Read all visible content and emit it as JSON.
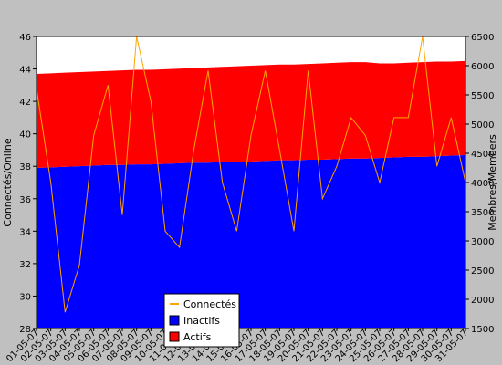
{
  "chart_data": {
    "type": "stacked-area-line",
    "y_label": "Connectés/Online",
    "y2_label": "Membres/Members",
    "categories": [
      "01-05-07",
      "02-05-07",
      "03-05-07",
      "04-05-07",
      "05-05-07",
      "06-05-07",
      "07-05-07",
      "08-05-07",
      "09-05-07",
      "10-05-07",
      "11-05-07",
      "12-05-07",
      "13-05-07",
      "14-05-07",
      "15-05-07",
      "16-05-07",
      "17-05-07",
      "18-05-07",
      "19-05-07",
      "20-05-07",
      "21-05-07",
      "22-05-07",
      "23-05-07",
      "24-05-07",
      "25-05-07",
      "26-05-07",
      "27-05-07",
      "28-05-07",
      "29-05-07",
      "30-05-07",
      "31-05-07"
    ],
    "series": [
      {
        "name": "Connectés",
        "color": "#ffa500",
        "kind": "line",
        "axis": "y",
        "values": [
          42.8,
          37,
          29,
          31.9,
          39.9,
          43,
          35,
          46,
          42,
          34,
          33,
          39,
          43.9,
          37,
          34,
          39.9,
          43.9,
          39,
          34,
          43.9,
          36,
          38,
          41,
          39.9,
          37,
          41,
          41,
          46,
          38,
          41,
          37
        ]
      },
      {
        "name": "Inactifs",
        "color": "#0000ff",
        "kind": "area",
        "axis": "y2",
        "values": [
          4250,
          4260,
          4270,
          4280,
          4290,
          4300,
          4300,
          4310,
          4310,
          4320,
          4330,
          4340,
          4340,
          4350,
          4360,
          4360,
          4370,
          4380,
          4380,
          4390,
          4390,
          4400,
          4410,
          4410,
          4420,
          4430,
          4440,
          4440,
          4450,
          4460,
          4470
        ]
      },
      {
        "name": "Actifs",
        "color": "#ff0000",
        "kind": "area",
        "axis": "y2",
        "values": [
          1610,
          1610,
          1610,
          1610,
          1610,
          1610,
          1620,
          1620,
          1620,
          1620,
          1620,
          1620,
          1630,
          1630,
          1630,
          1640,
          1640,
          1640,
          1640,
          1640,
          1650,
          1650,
          1650,
          1650,
          1620,
          1610,
          1610,
          1620,
          1620,
          1610,
          1610
        ]
      }
    ],
    "ylim": [
      28,
      46
    ],
    "yticks": [
      28,
      30,
      32,
      34,
      36,
      38,
      40,
      42,
      44,
      46
    ],
    "y2lim": [
      1500,
      6500
    ],
    "y2ticks": [
      1500,
      2000,
      2500,
      3000,
      3500,
      4000,
      4500,
      5000,
      5500,
      6000,
      6500
    ]
  }
}
